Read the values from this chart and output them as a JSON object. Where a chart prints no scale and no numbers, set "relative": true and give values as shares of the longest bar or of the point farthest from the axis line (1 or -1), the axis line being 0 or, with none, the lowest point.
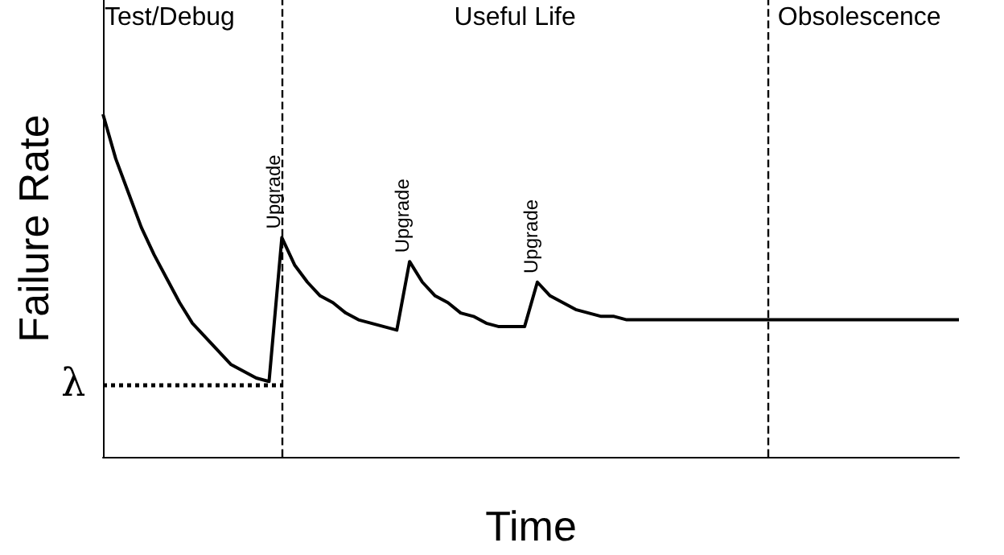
{
  "chart_data": {
    "type": "line",
    "relative": true,
    "xlabel": "Time",
    "ylabel": "Failure Rate",
    "grid": false,
    "line_style": "solid",
    "categories": [
      null,
      null,
      null,
      null,
      null,
      null,
      null,
      null,
      null,
      null,
      null,
      null,
      null,
      null,
      null,
      null,
      null,
      null,
      null,
      null,
      null,
      null,
      null,
      null,
      null,
      null,
      null,
      null,
      null,
      null,
      null,
      null,
      null,
      null,
      null,
      null,
      null,
      null,
      null,
      null,
      null,
      null,
      null,
      null,
      null,
      null,
      null,
      null,
      null,
      null,
      null,
      null,
      null,
      null,
      null,
      null,
      null,
      null,
      null,
      null,
      null,
      null,
      null,
      null,
      null,
      null,
      null,
      null
    ],
    "series": [
      {
        "color": "#000000",
        "values": [
          1.0,
          0.87,
          0.77,
          0.67,
          0.59,
          0.52,
          0.45,
          0.39,
          0.35,
          0.31,
          0.27,
          0.25,
          0.23,
          0.22,
          0.64,
          0.56,
          0.51,
          0.47,
          0.45,
          0.42,
          0.4,
          0.39,
          0.38,
          0.37,
          0.57,
          0.51,
          0.47,
          0.45,
          0.42,
          0.41,
          0.39,
          0.38,
          0.38,
          0.38,
          0.51,
          0.47,
          0.45,
          0.43,
          0.42,
          0.41,
          0.41,
          0.4,
          0.4,
          0.4,
          0.4,
          0.4,
          0.4,
          0.4,
          0.4,
          0.4,
          0.4,
          0.4,
          0.4,
          0.4,
          0.4,
          0.4,
          0.4,
          0.4,
          0.4,
          0.4,
          0.4,
          0.4,
          0.4,
          0.4,
          0.4,
          0.4,
          0.4,
          0.4
        ]
      }
    ],
    "ref_lines": [
      {
        "axis": "y",
        "value": 0.21,
        "label": "λ",
        "color": "#000000",
        "line_style": "dotted"
      }
    ],
    "annotations": [
      "Test/Debug",
      "Useful Life",
      "Obsolescence",
      "Upgrade",
      "Upgrade",
      "Upgrade"
    ]
  }
}
